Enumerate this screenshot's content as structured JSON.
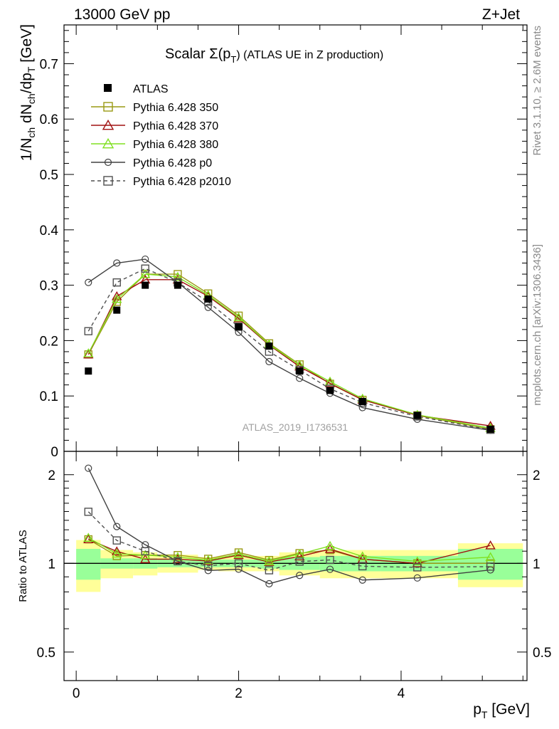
{
  "header": {
    "left": "13000 GeV pp",
    "right": "Z+Jet"
  },
  "side_labels": {
    "rivet": "Rivet 3.1.10, ≥ 2.6M events",
    "mcplots": "mcplots.cern.ch [arXiv:1306.3436]"
  },
  "plot_title": {
    "main": "Scalar Σ(p",
    "sub": "T",
    "rest": ") (ATLAS UE in Z production)"
  },
  "watermark": "ATLAS_2019_I1736531",
  "chart_data": {
    "type": "line",
    "main_panel": {
      "ylabel": "1/N_ch dN_ch/dp_T [GeV]",
      "ylim": [
        0,
        0.77
      ],
      "yticks": [
        0,
        0.1,
        0.2,
        0.3,
        0.4,
        0.5,
        0.6,
        0.7
      ],
      "ytick_labels": [
        "0",
        "0.1",
        "0.2",
        "0.3",
        "0.4",
        "0.5",
        "0.6",
        "0.7"
      ]
    },
    "ratio_panel": {
      "ylabel": "Ratio to ATLAS",
      "ylim": [
        0.4,
        2.4
      ],
      "log_scale": true,
      "yticks": [
        0.5,
        1,
        2
      ],
      "ytick_labels": [
        "0.5",
        "1",
        "2"
      ]
    },
    "xlabel": "p_T [GeV]",
    "xlim": [
      -0.15,
      5.55
    ],
    "xticks": [
      0,
      2,
      4
    ],
    "xtick_labels": [
      "0",
      "2",
      "4"
    ],
    "x": [
      0.15,
      0.5,
      0.85,
      1.25,
      1.625,
      2.0,
      2.375,
      2.75,
      3.125,
      3.525,
      4.2,
      5.1
    ],
    "bins": [
      [
        0.0,
        0.3
      ],
      [
        0.3,
        0.7
      ],
      [
        0.7,
        1.0
      ],
      [
        1.0,
        1.5
      ],
      [
        1.5,
        1.75
      ],
      [
        1.75,
        2.25
      ],
      [
        2.25,
        2.5
      ],
      [
        2.5,
        3.0
      ],
      [
        3.0,
        3.25
      ],
      [
        3.25,
        3.75
      ],
      [
        3.75,
        4.7
      ],
      [
        4.7,
        5.5
      ]
    ],
    "data": {
      "name": "ATLAS",
      "values": [
        0.145,
        0.255,
        0.3,
        0.3,
        0.275,
        0.225,
        0.19,
        0.145,
        0.11,
        0.09,
        0.065,
        0.04
      ]
    },
    "band_inner": [
      0.12,
      0.04,
      0.04,
      0.03,
      0.03,
      0.03,
      0.04,
      0.05,
      0.06,
      0.06,
      0.06,
      0.12
    ],
    "band_outer": [
      0.2,
      0.11,
      0.09,
      0.07,
      0.05,
      0.06,
      0.06,
      0.09,
      0.11,
      0.11,
      0.11,
      0.17
    ],
    "series": [
      {
        "name": "Pythia 6.428 350",
        "color": "#9a9a14",
        "marker": "square",
        "dashed": false,
        "values": [
          0.175,
          0.27,
          0.32,
          0.32,
          0.285,
          0.245,
          0.195,
          0.157,
          0.122,
          0.093,
          0.065,
          0.04
        ]
      },
      {
        "name": "Pythia 6.428 370",
        "color": "#a01010",
        "marker": "triangle",
        "dashed": false,
        "values": [
          0.175,
          0.28,
          0.31,
          0.31,
          0.28,
          0.24,
          0.192,
          0.153,
          0.123,
          0.093,
          0.065,
          0.046
        ]
      },
      {
        "name": "Pythia 6.428 380",
        "color": "#80e020",
        "marker": "triangle",
        "dashed": false,
        "values": [
          0.177,
          0.275,
          0.32,
          0.315,
          0.282,
          0.242,
          0.193,
          0.156,
          0.126,
          0.095,
          0.066,
          0.042
        ]
      },
      {
        "name": "Pythia 6.428 p0",
        "color": "#404040",
        "marker": "circle",
        "dashed": false,
        "values": [
          0.305,
          0.34,
          0.347,
          0.305,
          0.26,
          0.215,
          0.162,
          0.132,
          0.105,
          0.079,
          0.058,
          0.038
        ]
      },
      {
        "name": "Pythia 6.428 p2010",
        "color": "#505050",
        "marker": "square",
        "dashed": true,
        "values": [
          0.217,
          0.305,
          0.33,
          0.305,
          0.27,
          0.225,
          0.18,
          0.147,
          0.113,
          0.088,
          0.063,
          0.039
        ]
      }
    ],
    "legend_position": "top-left"
  }
}
